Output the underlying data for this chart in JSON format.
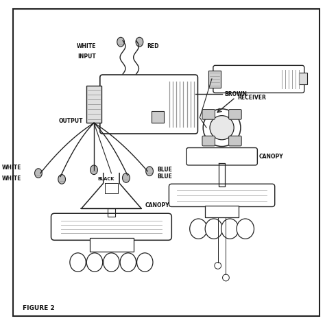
{
  "bg_color": "#ffffff",
  "line_color": "#222222",
  "text_color": "#111111",
  "fig_size": [
    4.74,
    4.74
  ],
  "dpi": 100,
  "labels": {
    "white1": "WHITE",
    "red": "RED",
    "input": "INPUT",
    "brown": "BROWN",
    "output": "OUTPUT",
    "white2": "WHITE",
    "white3": "WHITE",
    "black": "BLACK",
    "blue1": "BLUE",
    "blue2": "BLUE",
    "canopy1": "CANOPY",
    "canopy2": "CANOPY",
    "receiver": "RECEIVER",
    "figure": "FIGURE 2"
  }
}
